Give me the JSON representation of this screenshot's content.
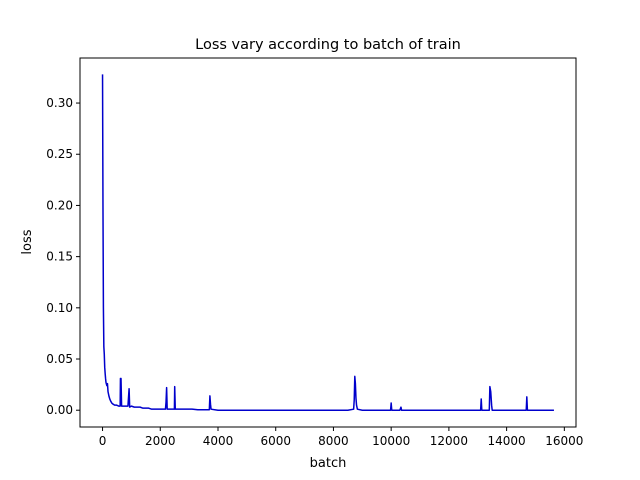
{
  "chart_data": {
    "type": "line",
    "title": "Loss vary according to batch of train",
    "xlabel": "batch",
    "ylabel": "loss",
    "xlim": [
      -781,
      16404
    ],
    "ylim": [
      -0.0164,
      0.344
    ],
    "xticks": [
      0,
      2000,
      4000,
      6000,
      8000,
      10000,
      12000,
      14000,
      16000
    ],
    "yticks": [
      0.0,
      0.05,
      0.1,
      0.15,
      0.2,
      0.25,
      0.3
    ],
    "xtick_labels": [
      "0",
      "2000",
      "4000",
      "6000",
      "8000",
      "10000",
      "12000",
      "14000",
      "16000"
    ],
    "ytick_labels": [
      "0.00",
      "0.05",
      "0.10",
      "0.15",
      "0.20",
      "0.25",
      "0.30"
    ],
    "grid": false,
    "series": [
      {
        "color": "#0000cc",
        "points": [
          [
            0,
            0.328
          ],
          [
            15,
            0.2
          ],
          [
            30,
            0.1
          ],
          [
            45,
            0.062
          ],
          [
            60,
            0.055
          ],
          [
            75,
            0.042
          ],
          [
            90,
            0.036
          ],
          [
            105,
            0.031
          ],
          [
            120,
            0.027
          ],
          [
            150,
            0.024
          ],
          [
            170,
            0.026
          ],
          [
            190,
            0.018
          ],
          [
            220,
            0.014
          ],
          [
            250,
            0.011
          ],
          [
            280,
            0.009
          ],
          [
            320,
            0.007
          ],
          [
            360,
            0.006
          ],
          [
            420,
            0.005
          ],
          [
            480,
            0.005
          ],
          [
            560,
            0.004
          ],
          [
            610,
            0.004
          ],
          [
            620,
            0.031
          ],
          [
            640,
            0.031
          ],
          [
            660,
            0.004
          ],
          [
            720,
            0.004
          ],
          [
            800,
            0.004
          ],
          [
            880,
            0.004
          ],
          [
            920,
            0.021
          ],
          [
            940,
            0.003
          ],
          [
            1000,
            0.004
          ],
          [
            1100,
            0.003
          ],
          [
            1200,
            0.003
          ],
          [
            1300,
            0.003
          ],
          [
            1400,
            0.002
          ],
          [
            1500,
            0.002
          ],
          [
            1600,
            0.002
          ],
          [
            1700,
            0.001
          ],
          [
            1800,
            0.001
          ],
          [
            1900,
            0.001
          ],
          [
            2000,
            0.001
          ],
          [
            2100,
            0.001
          ],
          [
            2180,
            0.001
          ],
          [
            2200,
            0.008
          ],
          [
            2220,
            0.022
          ],
          [
            2240,
            0.001
          ],
          [
            2350,
            0.001
          ],
          [
            2450,
            0.001
          ],
          [
            2490,
            0.001
          ],
          [
            2500,
            0.023
          ],
          [
            2520,
            0.001
          ],
          [
            2700,
            0.001
          ],
          [
            2900,
            0.001
          ],
          [
            3100,
            0.001
          ],
          [
            3300,
            0.0005
          ],
          [
            3500,
            0.0005
          ],
          [
            3700,
            0.0005
          ],
          [
            3720,
            0.014
          ],
          [
            3740,
            0.006
          ],
          [
            3760,
            0.001
          ],
          [
            4000,
            0.0
          ],
          [
            4500,
            0.0
          ],
          [
            5000,
            0.0
          ],
          [
            5500,
            0.0
          ],
          [
            6000,
            0.0
          ],
          [
            6500,
            0.0
          ],
          [
            7000,
            0.0
          ],
          [
            7500,
            0.0
          ],
          [
            8000,
            0.0
          ],
          [
            8500,
            0.0
          ],
          [
            8700,
            0.001
          ],
          [
            8720,
            0.01
          ],
          [
            8740,
            0.033
          ],
          [
            8760,
            0.026
          ],
          [
            8780,
            0.012
          ],
          [
            8800,
            0.005
          ],
          [
            8830,
            0.001
          ],
          [
            9000,
            0.0
          ],
          [
            9500,
            0.0
          ],
          [
            9980,
            0.0
          ],
          [
            10000,
            0.007
          ],
          [
            10020,
            0.0
          ],
          [
            10300,
            0.0
          ],
          [
            10340,
            0.003
          ],
          [
            10360,
            0.0
          ],
          [
            10500,
            0.0
          ],
          [
            11000,
            0.0
          ],
          [
            11500,
            0.0
          ],
          [
            12000,
            0.0
          ],
          [
            12500,
            0.0
          ],
          [
            13000,
            0.0
          ],
          [
            13100,
            0.0
          ],
          [
            13120,
            0.011
          ],
          [
            13140,
            0.0
          ],
          [
            13400,
            0.0
          ],
          [
            13420,
            0.023
          ],
          [
            13450,
            0.018
          ],
          [
            13480,
            0.005
          ],
          [
            13500,
            0.0
          ],
          [
            14000,
            0.0
          ],
          [
            14500,
            0.0
          ],
          [
            14680,
            0.0
          ],
          [
            14700,
            0.013
          ],
          [
            14720,
            0.0
          ],
          [
            15000,
            0.0
          ],
          [
            15500,
            0.0
          ],
          [
            15640,
            0.0
          ]
        ]
      }
    ]
  }
}
